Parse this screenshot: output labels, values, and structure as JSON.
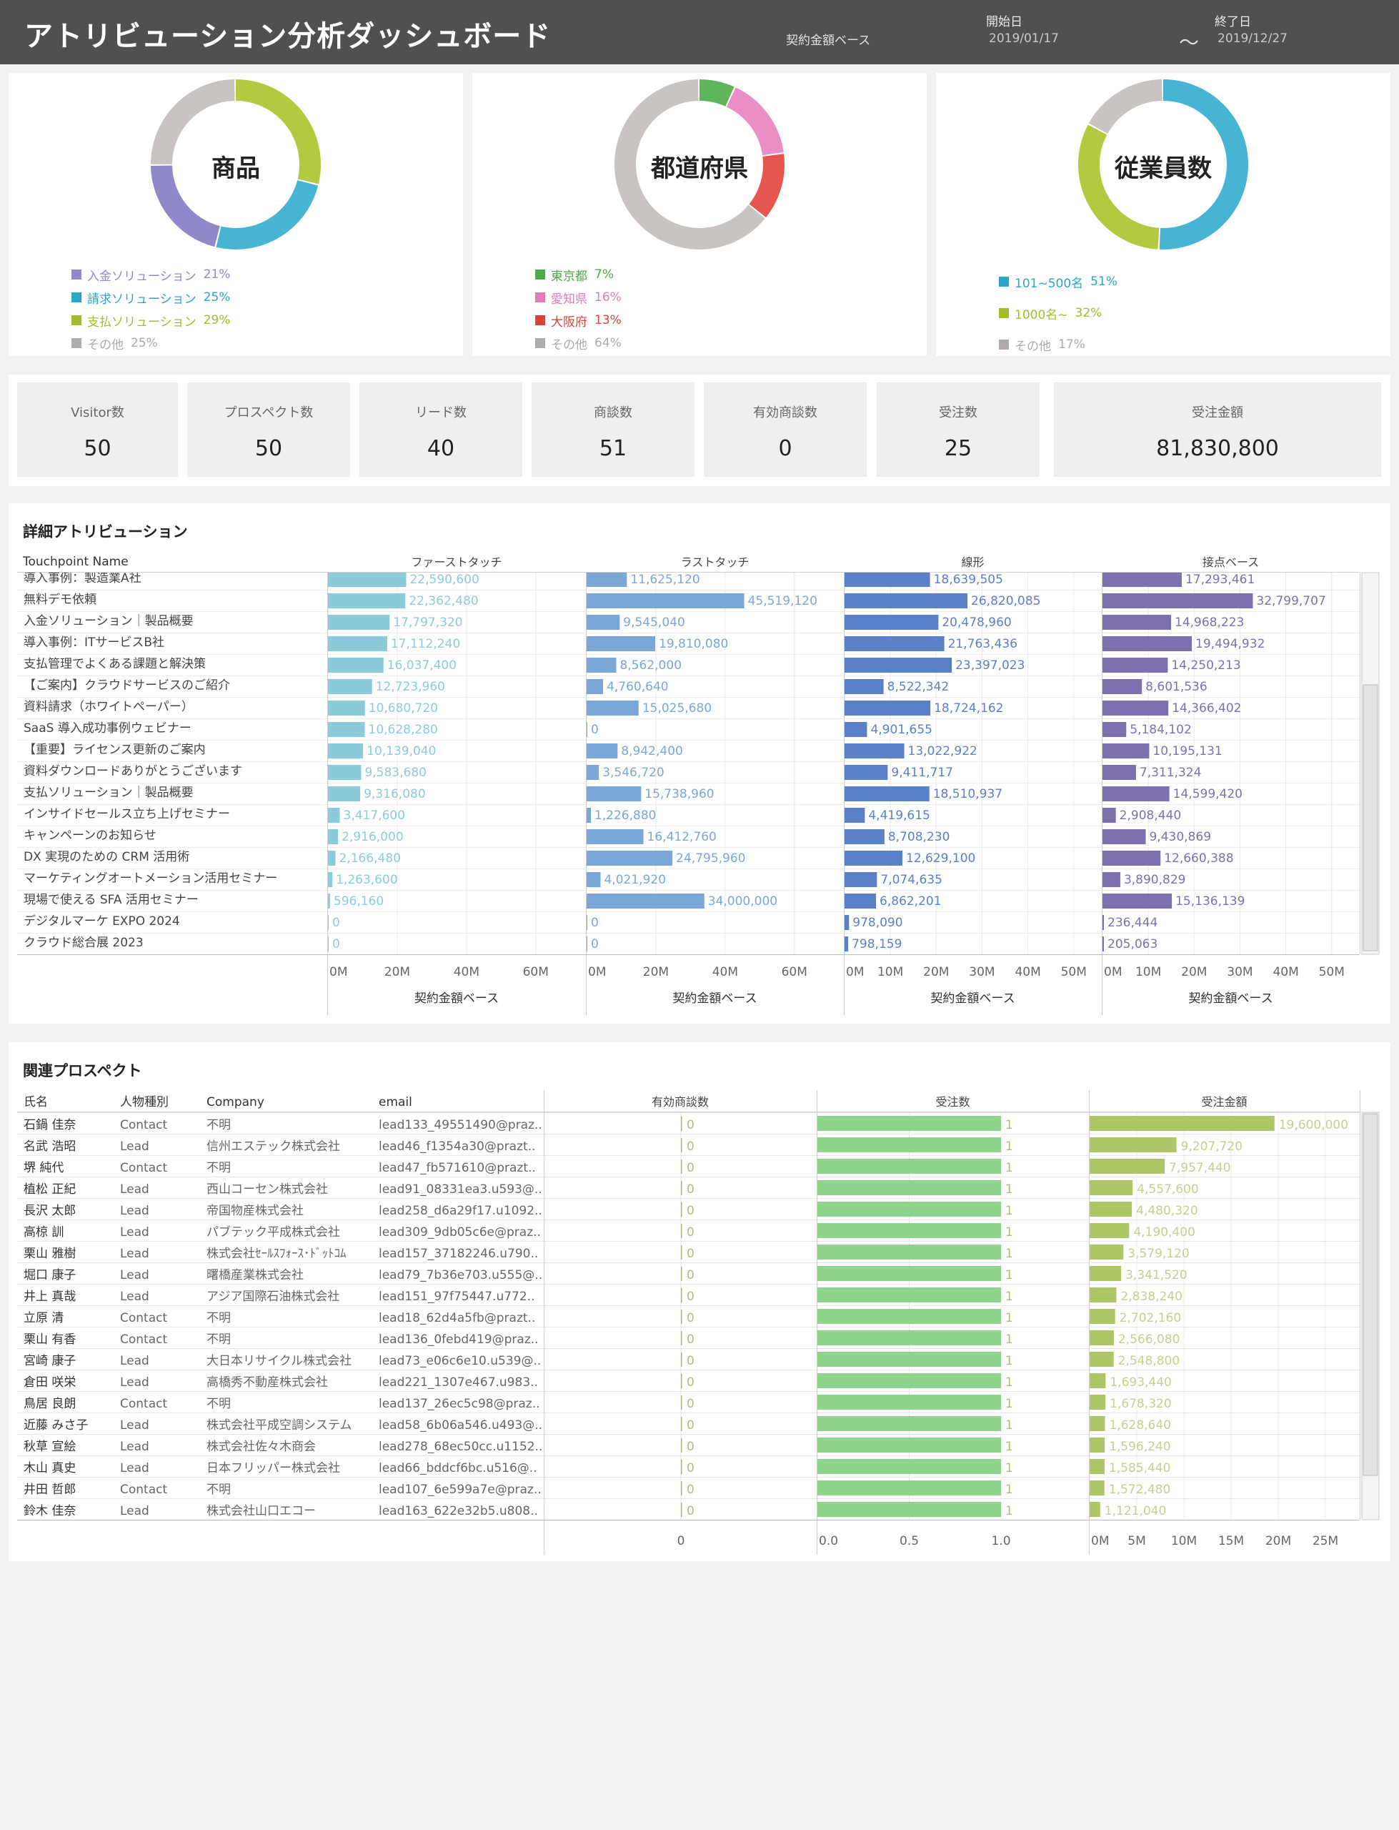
{
  "header": {
    "title": "アトリビューション分析ダッシュボード",
    "basis": "契約金額ベース",
    "start_label": "開始日",
    "start_value": "2019/01/17",
    "tilde": "～",
    "end_label": "終了日",
    "end_value": "2019/12/27"
  },
  "donuts": [
    {
      "title": "商品",
      "slices": [
        {
          "label": "支払ソリューション",
          "value": 29,
          "color": "#b5c940"
        },
        {
          "label": "請求ソリューション",
          "value": 25,
          "color": "#47b4d3"
        },
        {
          "label": "入金ソリューション",
          "value": 21,
          "color": "#8f89ca"
        },
        {
          "label": "その他",
          "value": 25,
          "color": "#c9c3c1"
        }
      ],
      "legend": [
        {
          "label": "入金ソリューション",
          "pct": "21%",
          "color": "#8f89ca"
        },
        {
          "label": "請求ソリューション",
          "pct": "25%",
          "color": "#2aa6c8"
        },
        {
          "label": "支払ソリューション",
          "pct": "29%",
          "color": "#a5bb2c"
        },
        {
          "label": "その他",
          "pct": "25%",
          "color": "#b0aaa8"
        }
      ]
    },
    {
      "title": "都道府県",
      "slices": [
        {
          "label": "東京都",
          "value": 7,
          "color": "#5fb55a"
        },
        {
          "label": "愛知県",
          "value": 16,
          "color": "#ea8fc6"
        },
        {
          "label": "大阪府",
          "value": 13,
          "color": "#e5574e"
        },
        {
          "label": "その他",
          "value": 64,
          "color": "#c9c3c1"
        }
      ],
      "legend": [
        {
          "label": "東京都",
          "pct": "7%",
          "color": "#4fa84a"
        },
        {
          "label": "愛知県",
          "pct": "16%",
          "color": "#e27bbb"
        },
        {
          "label": "大阪府",
          "pct": "13%",
          "color": "#d9433a"
        },
        {
          "label": "その他",
          "pct": "64%",
          "color": "#b0aaa8"
        }
      ]
    },
    {
      "title": "従業員数",
      "slices": [
        {
          "label": "101~500名",
          "value": 51,
          "color": "#47b4d3"
        },
        {
          "label": "1000名~",
          "value": 32,
          "color": "#b5c940"
        },
        {
          "label": "その他",
          "value": 17,
          "color": "#c9c3c1"
        }
      ],
      "legend": [
        {
          "label": "101~500名",
          "pct": "51%",
          "color": "#2aa6c8"
        },
        {
          "label": "1000名~",
          "pct": "32%",
          "color": "#a5bb2c"
        },
        {
          "label": "その他",
          "pct": "17%",
          "color": "#b0aaa8"
        }
      ]
    }
  ],
  "kpis": [
    {
      "label": "Visitor数",
      "value": "50"
    },
    {
      "label": "プロスペクト数",
      "value": "50"
    },
    {
      "label": "リード数",
      "value": "40"
    },
    {
      "label": "商談数",
      "value": "51"
    },
    {
      "label": "有効商談数",
      "value": "0"
    },
    {
      "label": "受注数",
      "value": "25"
    },
    {
      "label": "受注金額",
      "value": "81,830,800"
    }
  ],
  "attribution": {
    "title": "詳細アトリビューション",
    "row_header": "Touchpoint Name",
    "axis_title": "契約金額ベース",
    "touchpoints": [
      "導入事例：製造業A社",
      "無料デモ依頼",
      "入金ソリューション｜製品概要",
      "導入事例：ITサービスB社",
      "支払管理でよくある課題と解決策",
      "【ご案内】クラウドサービスのご紹介",
      "資料請求（ホワイトペーパー）",
      "SaaS 導入成功事例ウェビナー",
      "【重要】ライセンス更新のご案内",
      "資料ダウンロードありがとうございます",
      "支払ソリューション｜製品概要",
      "インサイドセールス立ち上げセミナー",
      "キャンペーンのお知らせ",
      "DX 実現のための CRM 活用術",
      "マーケティングオートメーション活用セミナー",
      "現場で使える SFA 活用セミナー",
      "デジタルマーケ EXPO 2024",
      "クラウド総合展 2023"
    ]
  },
  "chart_data": [
    {
      "type": "bar",
      "title": "ファーストタッチ",
      "xlabel": "契約金額ベース",
      "xlim": [
        0,
        65000000
      ],
      "ticks": [
        "0M",
        "20M",
        "40M",
        "60M"
      ],
      "color": "#8ccbdc",
      "values": [
        22590600,
        22362480,
        17797320,
        17112240,
        16037400,
        12723960,
        10680720,
        10628280,
        10139040,
        9583680,
        9316080,
        3417600,
        2916000,
        2166480,
        1263600,
        596160,
        0,
        0
      ],
      "labels": [
        "22,590,600",
        "22,362,480",
        "17,797,320",
        "17,112,240",
        "16,037,400",
        "12,723,960",
        "10,680,720",
        "10,628,280",
        "10,139,040",
        "9,583,680",
        "9,316,080",
        "3,417,600",
        "2,916,000",
        "2,166,480",
        "1,263,600",
        "596,160",
        "0",
        "0"
      ]
    },
    {
      "type": "bar",
      "title": "ラストタッチ",
      "xlabel": "契約金額ベース",
      "xlim": [
        0,
        65000000
      ],
      "ticks": [
        "0M",
        "20M",
        "40M",
        "60M"
      ],
      "color": "#7aa7d8",
      "values": [
        11625120,
        45519120,
        9545040,
        19810080,
        8562000,
        4760640,
        15025680,
        0,
        8942400,
        3546720,
        15738960,
        1226880,
        16412760,
        24795960,
        4021920,
        34000000,
        0,
        0
      ],
      "labels": [
        "11,625,120",
        "45,519,120",
        "9,545,040",
        "19,810,080",
        "8,562,000",
        "4,760,640",
        "15,025,680",
        "0",
        "8,942,400",
        "3,546,720",
        "15,738,960",
        "1,226,880",
        "16,412,760",
        "24,795,960",
        "4,021,920",
        "34,000,000",
        "0",
        "0"
      ]
    },
    {
      "type": "bar",
      "title": "線形",
      "xlabel": "契約金額ベース",
      "xlim": [
        0,
        53000000
      ],
      "ticks": [
        "0M",
        "10M",
        "20M",
        "30M",
        "40M",
        "50M"
      ],
      "color": "#5b80c7",
      "values": [
        18639505,
        26820085,
        20478960,
        21763436,
        23397023,
        8522342,
        18724162,
        4901655,
        13022922,
        9411717,
        18510937,
        4419615,
        8708230,
        12629100,
        7074635,
        6862201,
        978090,
        798159
      ],
      "labels": [
        "18,639,505",
        "26,820,085",
        "20,478,960",
        "21,763,436",
        "23,397,023",
        "8,522,342",
        "18,724,162",
        "4,901,655",
        "13,022,922",
        "9,411,717",
        "18,510,937",
        "4,419,615",
        "8,708,230",
        "12,629,100",
        "7,074,635",
        "6,862,201",
        "978,090",
        "798,159"
      ]
    },
    {
      "type": "bar",
      "title": "接点ベース",
      "xlabel": "契約金額ベース",
      "xlim": [
        0,
        53000000
      ],
      "ticks": [
        "0M",
        "10M",
        "20M",
        "30M",
        "40M",
        "50M"
      ],
      "color": "#7e70af",
      "values": [
        17293461,
        32799707,
        14968223,
        19494932,
        14250213,
        8601536,
        14366402,
        5184102,
        10195131,
        7311324,
        14599420,
        2908440,
        9430869,
        12660388,
        3890829,
        15136139,
        236444,
        205063
      ],
      "labels": [
        "17,293,461",
        "32,799,707",
        "14,968,223",
        "19,494,932",
        "14,250,213",
        "8,601,536",
        "14,366,402",
        "5,184,102",
        "10,195,131",
        "7,311,324",
        "14,599,420",
        "2,908,440",
        "9,430,869",
        "12,660,388",
        "3,890,829",
        "15,136,139",
        "236,444",
        "205,063"
      ]
    },
    {
      "type": "bar",
      "title": "有効商談数",
      "xlim": [
        0,
        1
      ],
      "ticks": [
        "0"
      ],
      "color": "#9fbf63",
      "values": [
        0,
        0,
        0,
        0,
        0,
        0,
        0,
        0,
        0,
        0,
        0,
        0,
        0,
        0,
        0,
        0,
        0,
        0,
        0
      ],
      "labels": [
        "0",
        "0",
        "0",
        "0",
        "0",
        "0",
        "0",
        "0",
        "0",
        "0",
        "0",
        "0",
        "0",
        "0",
        "0",
        "0",
        "0",
        "0",
        "0"
      ]
    },
    {
      "type": "bar",
      "title": "受注数",
      "xlim": [
        0,
        1.3
      ],
      "ticks": [
        "0.0",
        "0.5",
        "1.0"
      ],
      "color": "#8ed48a",
      "values": [
        1,
        1,
        1,
        1,
        1,
        1,
        1,
        1,
        1,
        1,
        1,
        1,
        1,
        1,
        1,
        1,
        1,
        1,
        1
      ],
      "labels": [
        "1",
        "1",
        "1",
        "1",
        "1",
        "1",
        "1",
        "1",
        "1",
        "1",
        "1",
        "1",
        "1",
        "1",
        "1",
        "1",
        "1",
        "1",
        "1"
      ]
    },
    {
      "type": "bar",
      "title": "受注金額",
      "xlim": [
        0,
        28000000
      ],
      "ticks": [
        "0M",
        "5M",
        "10M",
        "15M",
        "20M",
        "25M"
      ],
      "color": "#adc766",
      "values": [
        19600000,
        9207720,
        7957440,
        4557600,
        4480320,
        4190400,
        3579120,
        3341520,
        2838240,
        2702160,
        2566080,
        2548800,
        1693440,
        1678320,
        1628640,
        1596240,
        1585440,
        1572480,
        1121040
      ],
      "labels": [
        "19,600,000",
        "9,207,720",
        "7,957,440",
        "4,557,600",
        "4,480,320",
        "4,190,400",
        "3,579,120",
        "3,341,520",
        "2,838,240",
        "2,702,160",
        "2,566,080",
        "2,548,800",
        "1,693,440",
        "1,678,320",
        "1,628,640",
        "1,596,240",
        "1,585,440",
        "1,572,480",
        "1,121,040"
      ]
    }
  ],
  "prospects": {
    "title": "関連プロスペクト",
    "columns": [
      "氏名",
      "人物種別",
      "Company",
      "email"
    ],
    "rows": [
      [
        "石鍋 佳奈",
        "Contact",
        "不明",
        "lead133_49551490@praz.."
      ],
      [
        "名武 浩昭",
        "Lead",
        "信州エステック株式会社",
        "lead46_f1354a30@prazt.."
      ],
      [
        "堺 純代",
        "Contact",
        "不明",
        "lead47_fb571610@prazt.."
      ],
      [
        "植松 正紀",
        "Lead",
        "西山コーセン株式会社",
        "lead91_08331ea3.u593@.."
      ],
      [
        "長沢 太郎",
        "Lead",
        "帝国物産株式会社",
        "lead258_d6a29f17.u1092.."
      ],
      [
        "高椋 訓",
        "Lead",
        "パブテック平成株式会社",
        "lead309_9db05c6e@praz.."
      ],
      [
        "栗山 雅樹",
        "Lead",
        "株式会社ｾｰﾙｽﾌｫｰｽ･ﾄﾞｯﾄｺﾑ",
        "lead157_37182246.u790.."
      ],
      [
        "堀口 康子",
        "Lead",
        "曙橋産業株式会社",
        "lead79_7b36e703.u555@.."
      ],
      [
        "井上 真哉",
        "Lead",
        "アジア国際石油株式会社",
        "lead151_97f75447.u772.."
      ],
      [
        "立原 清",
        "Contact",
        "不明",
        "lead18_62d4a5fb@prazt.."
      ],
      [
        "栗山 有香",
        "Contact",
        "不明",
        "lead136_0febd419@praz.."
      ],
      [
        "宮崎 康子",
        "Lead",
        "大日本リサイクル株式会社",
        "lead73_e06c6e10.u539@.."
      ],
      [
        "倉田 咲栄",
        "Lead",
        "高橋秀不動産株式会社",
        "lead221_1307e467.u983.."
      ],
      [
        "鳥居 良朗",
        "Contact",
        "不明",
        "lead137_26ec5c98@praz.."
      ],
      [
        "近藤 みさ子",
        "Lead",
        "株式会社平成空調システム",
        "lead58_6b06a546.u493@.."
      ],
      [
        "秋草 宣絵",
        "Lead",
        "株式会社佐々木商会",
        "lead278_68ec50cc.u1152.."
      ],
      [
        "木山 真史",
        "Lead",
        "日本フリッパー株式会社",
        "lead66_bddcf6bc.u516@.."
      ],
      [
        "井田 哲郎",
        "Contact",
        "不明",
        "lead107_6e599a7e@praz.."
      ],
      [
        "鈴木 佳奈",
        "Lead",
        "株式会社山口エコー",
        "lead163_622e32b5.u808.."
      ]
    ]
  }
}
